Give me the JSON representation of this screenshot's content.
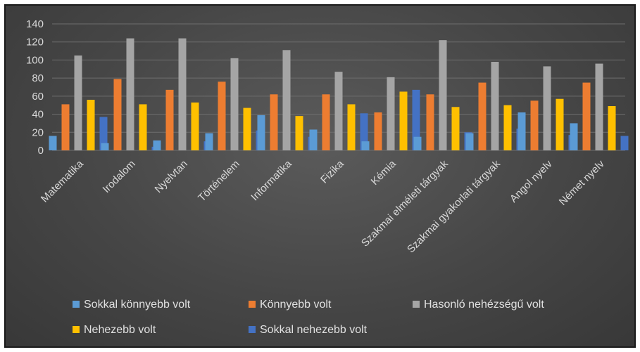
{
  "chart_data": {
    "type": "bar",
    "title": "",
    "xlabel": "",
    "ylabel": "",
    "ylim": [
      0,
      140
    ],
    "yticks": [
      0,
      20,
      40,
      60,
      80,
      100,
      120,
      140
    ],
    "grid": true,
    "legend_position": "bottom",
    "categories": [
      "Matematika",
      "Irodalom",
      "Nyelvtan",
      "Történelem",
      "Informatika",
      "Fizika",
      "Kémia",
      "Szakmai elméleti tárgyak",
      "Szakmai gyakorlati tárgyak",
      "Angol nyelv",
      "Német nyelv"
    ],
    "series": [
      {
        "name": "Sokkal könnyebb volt",
        "color": "#5b9bd5",
        "values": [
          16,
          8,
          11,
          19,
          39,
          23,
          10,
          15,
          19,
          42,
          30
        ]
      },
      {
        "name": "Könnyebb volt",
        "color": "#ed7d31",
        "values": [
          51,
          79,
          67,
          76,
          62,
          62,
          42,
          62,
          75,
          55,
          75
        ]
      },
      {
        "name": "Hasonló nehézségű volt",
        "color": "#a5a5a5",
        "values": [
          105,
          124,
          124,
          102,
          111,
          87,
          81,
          122,
          98,
          93,
          96
        ]
      },
      {
        "name": "Nehezebb volt",
        "color": "#ffc000",
        "values": [
          56,
          51,
          53,
          47,
          38,
          51,
          65,
          48,
          50,
          57,
          49
        ]
      },
      {
        "name": "Sokkal nehezebb volt",
        "color": "#4472c4",
        "values": [
          37,
          4,
          10,
          22,
          15,
          41,
          67,
          20,
          24,
          17,
          16
        ]
      }
    ]
  }
}
